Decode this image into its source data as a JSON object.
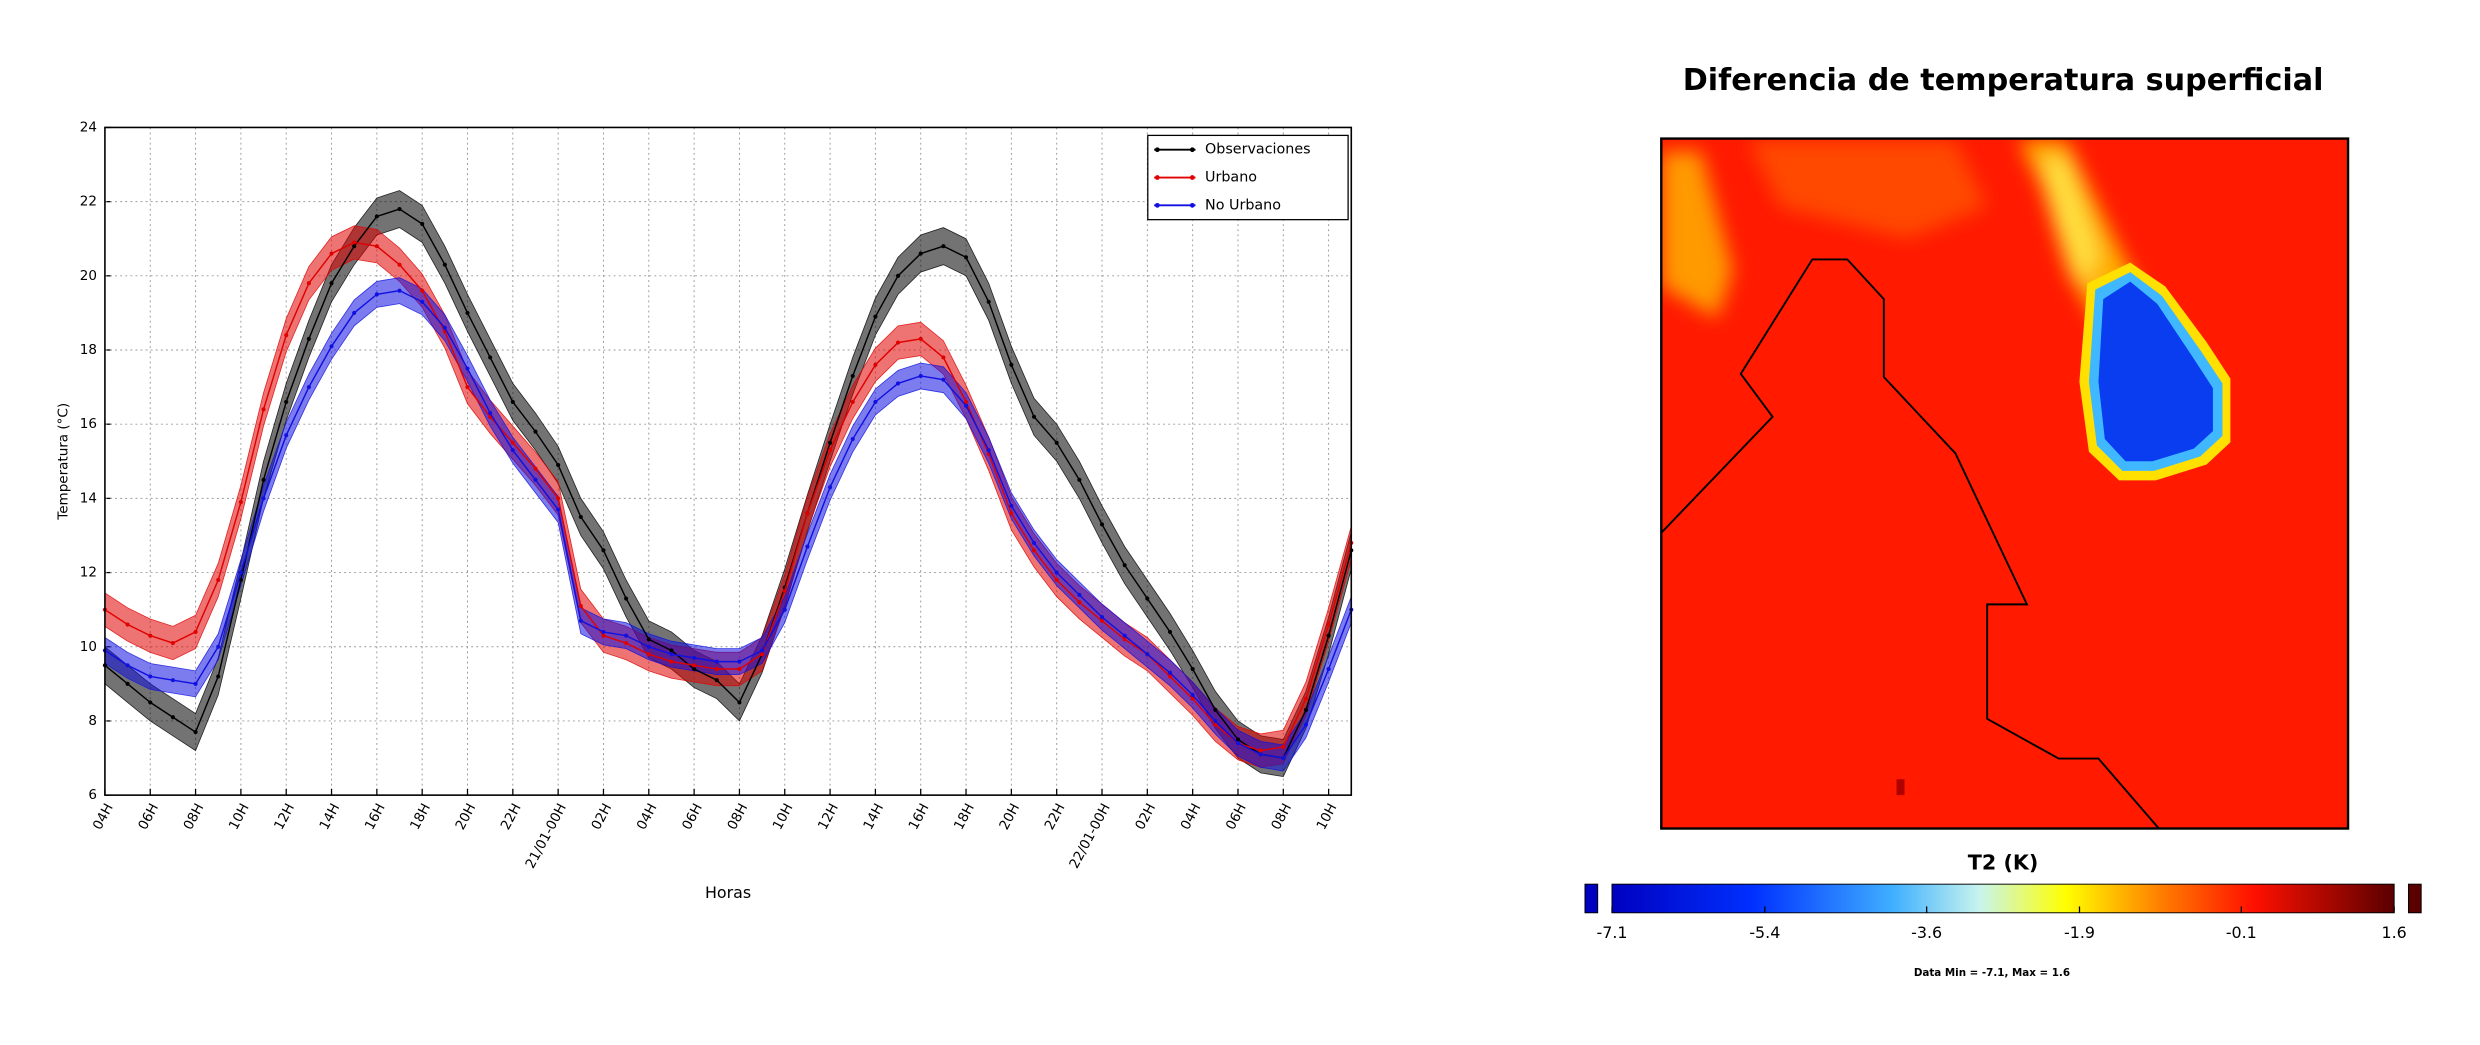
{
  "chart_data": [
    {
      "type": "line",
      "ylabel": "Temperatura (°C)",
      "xlabel": "Horas",
      "categories": [
        "04H",
        null,
        "06H",
        null,
        "08H",
        null,
        "10H",
        null,
        "12H",
        null,
        "14H",
        null,
        "16H",
        null,
        "18H",
        null,
        "20H",
        null,
        "22H",
        null,
        "21/01-00H",
        null,
        "02H",
        null,
        "04H",
        null,
        "06H",
        null,
        "08H",
        null,
        "10H",
        null,
        "12H",
        null,
        "14H",
        null,
        "16H",
        null,
        "18H",
        null,
        "20H",
        null,
        "22H",
        null,
        "22/01-00H",
        null,
        "02H",
        null,
        "04H",
        null,
        "06H",
        null,
        "08H",
        null,
        "10H",
        null
      ],
      "ylim": [
        6,
        24
      ],
      "yticks": [
        6,
        8,
        10,
        12,
        14,
        16,
        18,
        20,
        22,
        24
      ],
      "grid": true,
      "legend": "upper right",
      "series": [
        {
          "name": "Observaciones",
          "color": "#000000",
          "band": 0.5,
          "values": [
            9.5,
            9.0,
            8.5,
            8.1,
            7.7,
            9.2,
            11.8,
            14.5,
            16.6,
            18.3,
            19.8,
            20.8,
            21.6,
            21.8,
            21.4,
            20.3,
            19.0,
            17.8,
            16.6,
            15.8,
            14.9,
            13.5,
            12.6,
            11.3,
            10.2,
            9.9,
            9.4,
            9.1,
            8.5,
            9.8,
            11.6,
            13.6,
            15.5,
            17.3,
            18.9,
            20.0,
            20.6,
            20.8,
            20.5,
            19.3,
            17.6,
            16.2,
            15.5,
            14.5,
            13.3,
            12.2,
            11.3,
            10.4,
            9.4,
            8.3,
            7.5,
            7.1,
            7.0,
            8.3,
            10.3,
            12.6
          ]
        },
        {
          "name": "Urbano",
          "color": "#e00000",
          "band": 0.45,
          "values": [
            11.0,
            10.6,
            10.3,
            10.1,
            10.4,
            11.8,
            13.9,
            16.4,
            18.4,
            19.8,
            20.6,
            20.9,
            20.8,
            20.3,
            19.6,
            18.5,
            17.0,
            16.2,
            15.5,
            14.8,
            14.0,
            11.1,
            10.3,
            10.1,
            9.8,
            9.6,
            9.5,
            9.4,
            9.4,
            9.8,
            11.5,
            13.6,
            15.3,
            16.6,
            17.6,
            18.2,
            18.3,
            17.8,
            16.6,
            15.2,
            13.6,
            12.6,
            11.8,
            11.2,
            10.7,
            10.2,
            9.8,
            9.2,
            8.6,
            7.9,
            7.4,
            7.2,
            7.3,
            8.6,
            10.6,
            12.8
          ]
        },
        {
          "name": "No Urbano",
          "color": "#1010e0",
          "band": 0.35,
          "values": [
            9.9,
            9.5,
            9.2,
            9.1,
            9.0,
            10.0,
            12.0,
            14.0,
            15.7,
            17.0,
            18.1,
            19.0,
            19.5,
            19.6,
            19.3,
            18.6,
            17.5,
            16.3,
            15.3,
            14.5,
            13.7,
            10.7,
            10.4,
            10.3,
            10.0,
            9.8,
            9.7,
            9.6,
            9.6,
            9.9,
            11.0,
            12.7,
            14.3,
            15.6,
            16.6,
            17.1,
            17.3,
            17.2,
            16.5,
            15.3,
            13.8,
            12.8,
            12.0,
            11.4,
            10.8,
            10.3,
            9.8,
            9.3,
            8.7,
            8.0,
            7.4,
            7.1,
            7.0,
            7.9,
            9.4,
            11.0
          ]
        }
      ]
    },
    {
      "type": "heatmap",
      "title": "Diferencia de temperatura superficial",
      "colorbar": {
        "label": "T2 (K)",
        "lim": [
          -7.1,
          1.6
        ],
        "ticks": [
          -7.1,
          -5.4,
          -3.6,
          -1.9,
          -0.1,
          1.6
        ]
      },
      "note": "Data Min = -7.1, Max = 1.6"
    }
  ]
}
